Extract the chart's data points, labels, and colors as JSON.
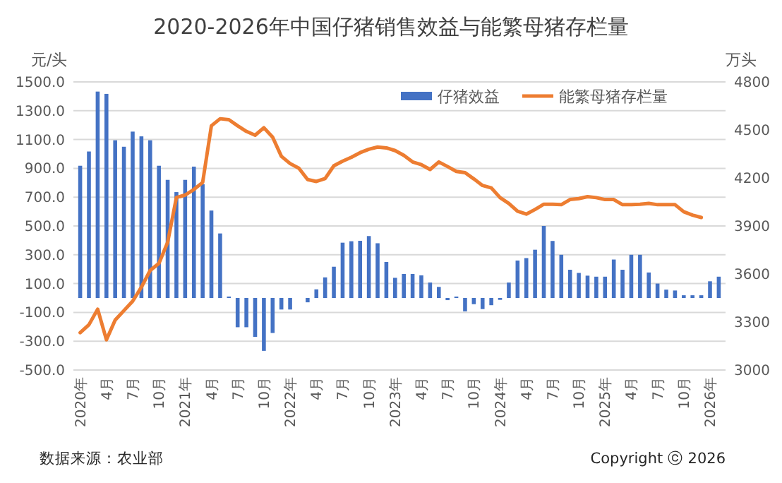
{
  "chart_data": {
    "type": "bar",
    "title": "2020-2026年中国仔猪销售效益与能繁母猪存栏量",
    "ylabel": "元/头",
    "y2label": "万头",
    "categories": [
      "2020年",
      null,
      null,
      "4月",
      null,
      null,
      "7月",
      null,
      null,
      "10月",
      null,
      null,
      "2021年",
      null,
      null,
      "4月",
      null,
      null,
      "7月",
      null,
      null,
      "10月",
      null,
      null,
      "2022年",
      null,
      null,
      "4月",
      null,
      null,
      "7月",
      null,
      null,
      "10月",
      null,
      null,
      "2023年",
      null,
      null,
      "4月",
      null,
      null,
      "7月",
      null,
      null,
      "10月",
      null,
      null,
      "2024年",
      null,
      null,
      "4月",
      null,
      null,
      "7月",
      null,
      null,
      "10月",
      null,
      null,
      "2025年",
      null,
      null,
      "4月",
      null,
      null,
      "7月",
      null,
      null,
      "10月",
      null,
      null,
      "2026年",
      null
    ],
    "series": [
      {
        "name": "仔猪效益",
        "color": "#4472c4",
        "values": [
          918,
          1017,
          1433,
          1417,
          1095,
          1050,
          1155,
          1122,
          1095,
          918,
          820,
          735,
          820,
          912,
          790,
          607,
          448,
          10,
          -203,
          -203,
          -270,
          -367,
          -243,
          -80,
          -80,
          null,
          -30,
          60,
          143,
          217,
          384,
          394,
          397,
          430,
          380,
          250,
          140,
          167,
          167,
          157,
          107,
          77,
          -15,
          10,
          -93,
          -43,
          -77,
          -50,
          -13,
          107,
          260,
          277,
          335,
          500,
          396,
          300,
          196,
          174,
          155,
          148,
          148,
          267,
          196,
          300,
          300,
          177,
          100,
          58,
          52,
          19,
          19,
          19,
          116,
          148
        ]
      },
      {
        "name": "能繁母猪存栏量",
        "type": "line",
        "axis": "y2",
        "color": "#ed7d31",
        "values": [
          3233,
          3283,
          3380,
          3189,
          3312,
          3371,
          3430,
          3518,
          3622,
          3666,
          3798,
          4078,
          4093,
          4128,
          4172,
          4526,
          4570,
          4564,
          4526,
          4491,
          4467,
          4514,
          4455,
          4335,
          4290,
          4261,
          4190,
          4178,
          4196,
          4276,
          4305,
          4329,
          4358,
          4379,
          4393,
          4388,
          4371,
          4341,
          4300,
          4283,
          4253,
          4300,
          4271,
          4241,
          4233,
          4194,
          4153,
          4138,
          4077,
          4041,
          3992,
          3974,
          4003,
          4036,
          4036,
          4033,
          4065,
          4071,
          4083,
          4077,
          4065,
          4065,
          4033,
          4033,
          4036,
          4041,
          4033,
          4033,
          4033,
          3989,
          3968,
          3953,
          null,
          null
        ]
      }
    ],
    "ylim": [
      -500,
      1500
    ],
    "yticks": [
      {
        "value": -500,
        "label": "-500.0"
      },
      {
        "value": -300,
        "label": "-300.0"
      },
      {
        "value": -100,
        "label": "-100.0"
      },
      {
        "value": 100,
        "label": "100.0"
      },
      {
        "value": 300,
        "label": "300.0"
      },
      {
        "value": 500,
        "label": "500.0"
      },
      {
        "value": 700,
        "label": "700.0"
      },
      {
        "value": 900,
        "label": "900.0"
      },
      {
        "value": 1100,
        "label": "1100.0"
      },
      {
        "value": 1300,
        "label": "1300.0"
      },
      {
        "value": 1500,
        "label": "1500.0"
      }
    ],
    "y2lim": [
      3000,
      4800
    ],
    "y2ticks": [
      3000,
      3300,
      3600,
      3900,
      4200,
      4500,
      4800
    ],
    "grid": "y",
    "legend": "top right",
    "line_style": "solid",
    "marker": "none",
    "annotations": [
      "数据来源：农业部",
      "Copyright ⓒ 2026"
    ]
  }
}
